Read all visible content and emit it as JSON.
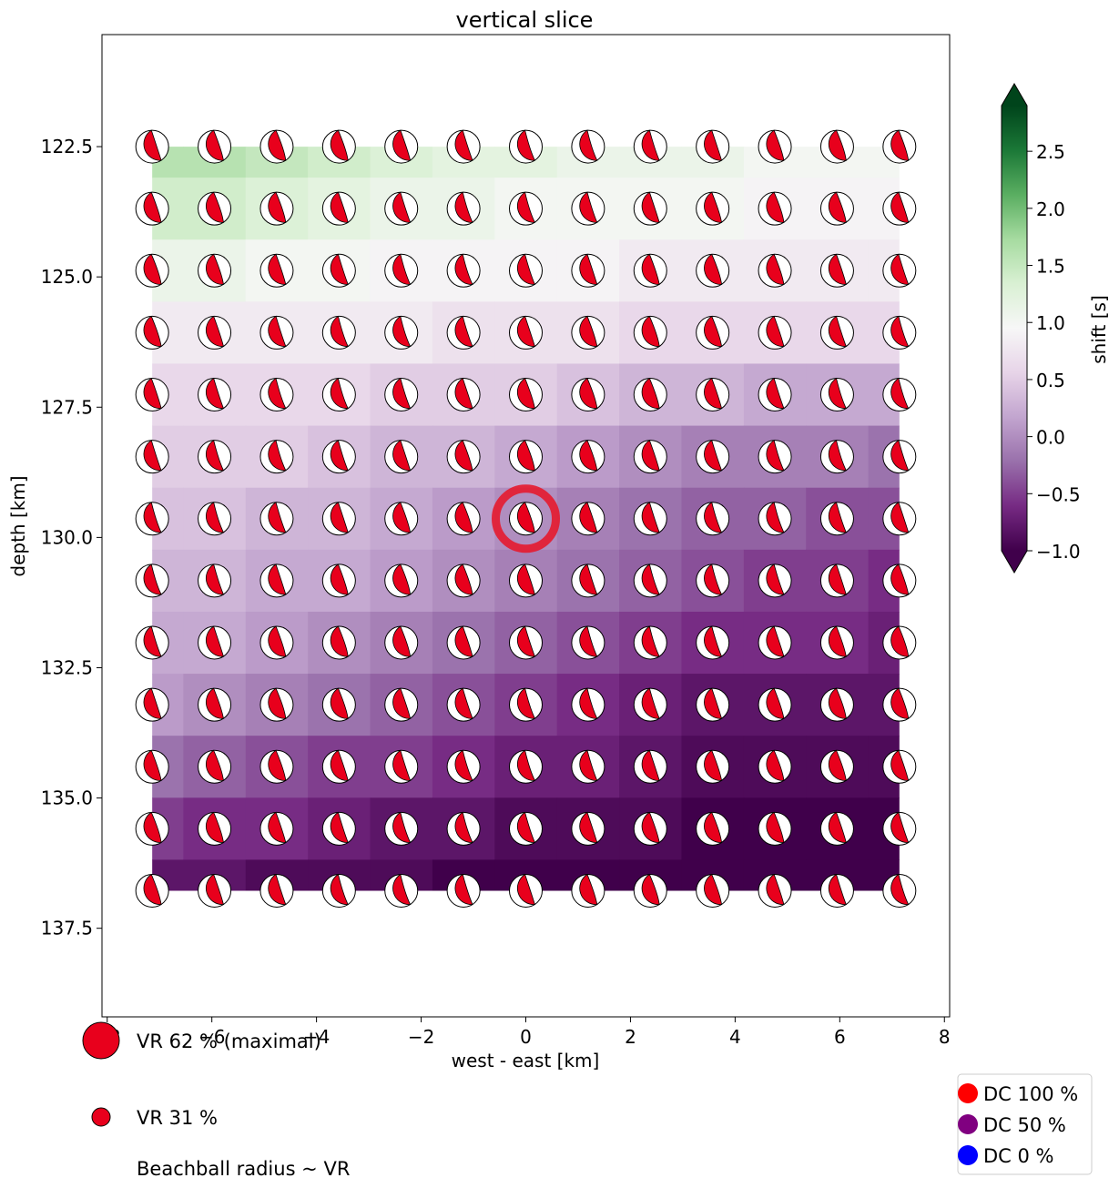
{
  "chart_data": {
    "type": "heatmap",
    "title": "vertical slice",
    "xlabel": "west - east [km]",
    "ylabel": "depth [km]",
    "xlim": [
      -8.1,
      8.1
    ],
    "ylim": [
      139.2,
      120.35
    ],
    "y_inverted": true,
    "xticks": [
      -8,
      -6,
      -4,
      -2,
      0,
      2,
      4,
      6,
      8
    ],
    "xtick_labels": [
      "−8",
      "−6",
      "−4",
      "−2",
      "0",
      "2",
      "4",
      "6",
      "8"
    ],
    "yticks": [
      122.5,
      125.0,
      127.5,
      130.0,
      132.5,
      135.0,
      137.5
    ],
    "ytick_labels": [
      "122.5",
      "125.0",
      "127.5",
      "130.0",
      "132.5",
      "135.0",
      "137.5"
    ],
    "grid": false,
    "x": [
      -7.14,
      -5.95,
      -4.76,
      -3.57,
      -2.38,
      -1.19,
      0.0,
      1.19,
      2.38,
      3.57,
      4.76,
      5.95,
      7.14
    ],
    "depth": [
      122.5,
      123.69,
      124.88,
      126.07,
      127.26,
      128.45,
      129.64,
      130.83,
      132.02,
      133.21,
      134.4,
      135.59,
      136.78
    ],
    "shift_s": [
      [
        1.6,
        1.6,
        1.5,
        1.4,
        1.3,
        1.2,
        1.2,
        1.1,
        1.1,
        1.1,
        1.0,
        1.0,
        1.0
      ],
      [
        1.4,
        1.4,
        1.3,
        1.2,
        1.1,
        1.1,
        1.0,
        1.0,
        1.0,
        1.0,
        0.9,
        0.9,
        0.9
      ],
      [
        1.1,
        1.1,
        1.0,
        1.0,
        0.9,
        0.9,
        0.9,
        0.9,
        0.8,
        0.8,
        0.8,
        0.8,
        0.8
      ],
      [
        0.8,
        0.8,
        0.8,
        0.8,
        0.8,
        0.7,
        0.7,
        0.7,
        0.6,
        0.6,
        0.6,
        0.6,
        0.6
      ],
      [
        0.6,
        0.6,
        0.6,
        0.6,
        0.5,
        0.5,
        0.5,
        0.4,
        0.3,
        0.3,
        0.2,
        0.2,
        0.2
      ],
      [
        0.5,
        0.5,
        0.5,
        0.4,
        0.3,
        0.3,
        0.2,
        0.1,
        0.0,
        -0.1,
        -0.1,
        -0.1,
        -0.2
      ],
      [
        0.4,
        0.4,
        0.3,
        0.3,
        0.2,
        0.1,
        0.0,
        -0.1,
        -0.2,
        -0.3,
        -0.3,
        -0.4,
        -0.4
      ],
      [
        0.3,
        0.3,
        0.2,
        0.2,
        0.1,
        0.0,
        -0.1,
        -0.2,
        -0.3,
        -0.4,
        -0.5,
        -0.5,
        -0.6
      ],
      [
        0.2,
        0.2,
        0.1,
        0.0,
        -0.1,
        -0.2,
        -0.3,
        -0.4,
        -0.5,
        -0.6,
        -0.6,
        -0.6,
        -0.7
      ],
      [
        0.1,
        0.0,
        -0.1,
        -0.2,
        -0.3,
        -0.4,
        -0.5,
        -0.6,
        -0.7,
        -0.8,
        -0.8,
        -0.8,
        -0.8
      ],
      [
        -0.2,
        -0.3,
        -0.4,
        -0.5,
        -0.5,
        -0.6,
        -0.7,
        -0.7,
        -0.8,
        -0.9,
        -0.9,
        -0.9,
        -0.9
      ],
      [
        -0.5,
        -0.6,
        -0.6,
        -0.7,
        -0.8,
        -0.8,
        -0.9,
        -0.9,
        -0.9,
        -1.0,
        -1.0,
        -1.0,
        -1.0
      ],
      [
        -0.8,
        -0.8,
        -0.9,
        -0.9,
        -0.9,
        -1.0,
        -1.0,
        -1.0,
        -1.0,
        -1.0,
        -1.0,
        -1.0,
        -1.0
      ]
    ],
    "colorbar": {
      "label": "shift [s]",
      "min": -1.0,
      "max": 2.9,
      "extend": "both",
      "ticks": [
        -1.0,
        -0.5,
        0.0,
        0.5,
        1.0,
        1.5,
        2.0,
        2.5
      ],
      "tick_labels": [
        "−1.0",
        "−0.5",
        "0.0",
        "0.5",
        "1.0",
        "1.5",
        "2.0",
        "2.5"
      ],
      "colormap": "PRGn",
      "stops": [
        "#40004b",
        "#762a83",
        "#9970ab",
        "#c2a5cf",
        "#e7d4e8",
        "#f7f7f7",
        "#d9f0d3",
        "#a6dba0",
        "#5aae61",
        "#1b7837",
        "#00441b"
      ]
    },
    "beachball_color": "#e8001c",
    "highlight": {
      "x": 0.0,
      "depth": 129.64,
      "color": "#e6192e"
    },
    "legend_vr": {
      "placement": "bottom-left",
      "items": [
        "VR 62 % (maximal)",
        "VR 31 %",
        "Beachball radius ~ VR"
      ]
    },
    "legend_dc": {
      "placement": "bottom-right",
      "items": [
        {
          "label": "DC 100 %",
          "color": "#ff0000"
        },
        {
          "label": "DC 50 %",
          "color": "#800080"
        },
        {
          "label": "DC 0 %",
          "color": "#0000ff"
        }
      ]
    }
  }
}
